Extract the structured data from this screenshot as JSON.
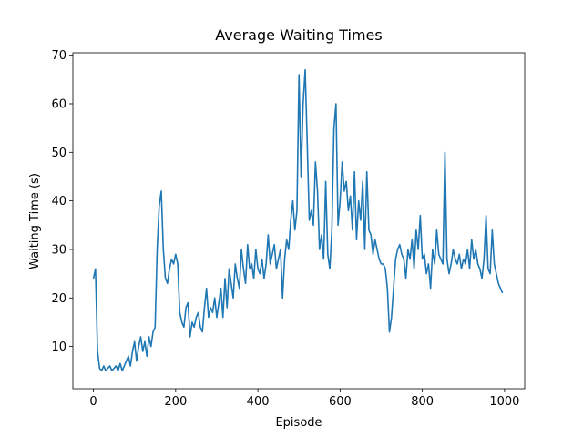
{
  "chart_data": {
    "type": "line",
    "title": "Average Waiting Times",
    "xlabel": "Episode",
    "ylabel": "Waiting Time (s)",
    "color": "#1f77b4",
    "x": [
      0,
      5,
      10,
      15,
      20,
      25,
      30,
      35,
      40,
      45,
      50,
      55,
      60,
      65,
      70,
      75,
      80,
      85,
      90,
      95,
      100,
      105,
      110,
      115,
      120,
      125,
      130,
      135,
      140,
      145,
      150,
      155,
      160,
      165,
      170,
      175,
      180,
      185,
      190,
      195,
      200,
      205,
      210,
      215,
      220,
      225,
      230,
      235,
      240,
      245,
      250,
      255,
      260,
      265,
      270,
      275,
      280,
      285,
      290,
      295,
      300,
      305,
      310,
      315,
      320,
      325,
      330,
      335,
      340,
      345,
      350,
      355,
      360,
      365,
      370,
      375,
      380,
      385,
      390,
      395,
      400,
      405,
      410,
      415,
      420,
      425,
      430,
      435,
      440,
      445,
      450,
      455,
      460,
      465,
      470,
      475,
      480,
      485,
      490,
      495,
      500,
      505,
      510,
      515,
      520,
      525,
      530,
      535,
      540,
      545,
      550,
      555,
      560,
      565,
      570,
      575,
      580,
      585,
      590,
      595,
      600,
      605,
      610,
      615,
      620,
      625,
      630,
      635,
      640,
      645,
      650,
      655,
      660,
      665,
      670,
      675,
      680,
      685,
      690,
      695,
      700,
      705,
      710,
      715,
      720,
      725,
      730,
      735,
      740,
      745,
      750,
      755,
      760,
      765,
      770,
      775,
      780,
      785,
      790,
      795,
      800,
      805,
      810,
      815,
      820,
      825,
      830,
      835,
      840,
      845,
      850,
      855,
      860,
      865,
      870,
      875,
      880,
      885,
      890,
      895,
      900,
      905,
      910,
      915,
      920,
      925,
      930,
      935,
      940,
      945,
      950,
      955,
      960,
      965,
      970,
      975,
      980,
      985,
      990,
      995
    ],
    "values": [
      24,
      26,
      9,
      5.5,
      5,
      6,
      5,
      5.5,
      6,
      5,
      5.5,
      6,
      5,
      6.5,
      5,
      6,
      7,
      8,
      6,
      9,
      11,
      7,
      10,
      12,
      9,
      11,
      8,
      12,
      10,
      13,
      14,
      30,
      39,
      42,
      30,
      24,
      23,
      26,
      28,
      27,
      29,
      27,
      17,
      15,
      14,
      18,
      19,
      12,
      15,
      14,
      16,
      17,
      14,
      13,
      18,
      22,
      16,
      18,
      17,
      20,
      16,
      19,
      22,
      16,
      24,
      18,
      26,
      23,
      20,
      27,
      24,
      22,
      30,
      26,
      23,
      31,
      26,
      27,
      24,
      30,
      26,
      25,
      28,
      24,
      27,
      33,
      27,
      29,
      31,
      26,
      28,
      30,
      20,
      28,
      32,
      30,
      36,
      40,
      34,
      38,
      66,
      45,
      60,
      67,
      52,
      36,
      38,
      35,
      48,
      42,
      30,
      33,
      28,
      44,
      29,
      26,
      34,
      55,
      60,
      35,
      40,
      48,
      42,
      44,
      38,
      41,
      34,
      46,
      32,
      40,
      36,
      44,
      30,
      46,
      34,
      33,
      29,
      32,
      30,
      28,
      27,
      27,
      26,
      22,
      13,
      16,
      22,
      28,
      30,
      31,
      29,
      28,
      24,
      30,
      28,
      32,
      26,
      34,
      30,
      37,
      28,
      29,
      25,
      27,
      22,
      30,
      27,
      34,
      29,
      28,
      27,
      50,
      28,
      25,
      27,
      30,
      28,
      27,
      29,
      26,
      28,
      27,
      30,
      26,
      32,
      28,
      30,
      27,
      26,
      24,
      28,
      37,
      26,
      25,
      34,
      27,
      25,
      23,
      22,
      21
    ],
    "xlim": [
      -50,
      1049
    ],
    "ylim": [
      1.3,
      70.5
    ],
    "xticks": [
      0,
      200,
      400,
      600,
      800,
      1000
    ],
    "yticks": [
      10,
      20,
      30,
      40,
      50,
      60,
      70
    ]
  }
}
